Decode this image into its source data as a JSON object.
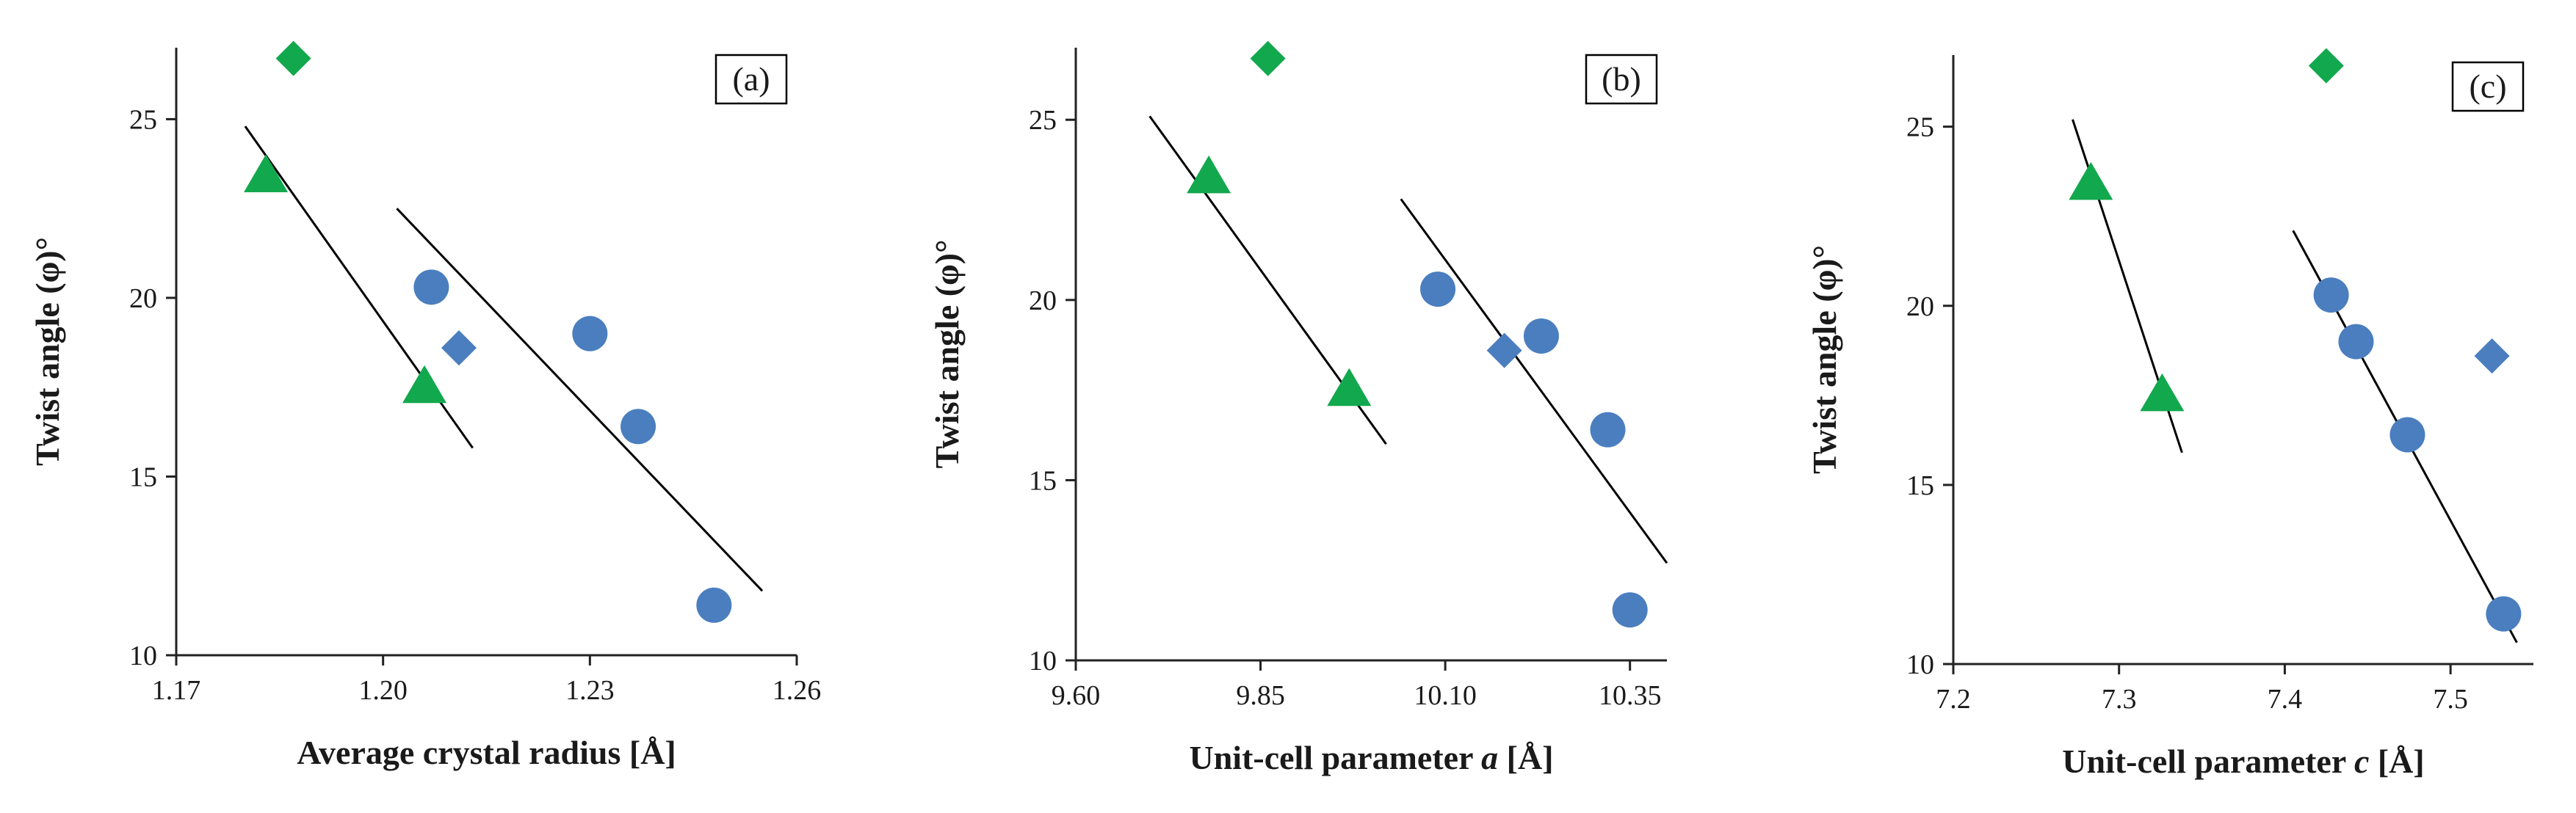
{
  "colors": {
    "blue": "#4a7ebf",
    "green": "#12a84e",
    "axis": "#222222",
    "fit": "#000000"
  },
  "chart_data": [
    {
      "type": "scatter",
      "panel_label": "(a)",
      "xlabel": "Average crystal radius [Å]",
      "xlabel_parts": [
        {
          "text": "Average crystal radius [Å]",
          "italic": false
        }
      ],
      "ylabel": "Twist angle (φ)°",
      "xlim": [
        1.17,
        1.26
      ],
      "ylim": [
        10,
        27
      ],
      "xticks": [
        1.17,
        1.2,
        1.23,
        1.26
      ],
      "xtick_labels": [
        "1.17",
        "1.20",
        "1.23",
        "1.26"
      ],
      "yticks": [
        10,
        15,
        20,
        25
      ],
      "ytick_labels": [
        "10",
        "15",
        "20",
        "25"
      ],
      "series": [
        {
          "marker": "triangle",
          "color": "green",
          "points": [
            [
              1.183,
              23.4
            ],
            [
              1.206,
              17.5
            ]
          ]
        },
        {
          "marker": "diamond",
          "color": "green",
          "points": [
            [
              1.187,
              26.7
            ]
          ]
        },
        {
          "marker": "circle",
          "color": "blue",
          "points": [
            [
              1.207,
              20.3
            ],
            [
              1.23,
              19.0
            ],
            [
              1.237,
              16.4
            ],
            [
              1.248,
              11.4
            ]
          ]
        },
        {
          "marker": "diamond",
          "color": "blue",
          "points": [
            [
              1.211,
              18.6
            ]
          ]
        }
      ],
      "fit_lines": [
        {
          "from": [
            1.18,
            24.8
          ],
          "to": [
            1.213,
            15.8
          ]
        },
        {
          "from": [
            1.202,
            22.5
          ],
          "to": [
            1.255,
            11.8
          ]
        }
      ]
    },
    {
      "type": "scatter",
      "panel_label": "(b)",
      "xlabel": "Unit-cell parameter a [Å]",
      "xlabel_parts": [
        {
          "text": "Unit-cell parameter ",
          "italic": false
        },
        {
          "text": "a",
          "italic": true
        },
        {
          "text": " [Å]",
          "italic": false
        }
      ],
      "ylabel": "Twist angle (φ)°",
      "xlim": [
        9.6,
        10.4
      ],
      "ylim": [
        10,
        27
      ],
      "xticks": [
        9.6,
        9.85,
        10.1,
        10.35
      ],
      "xtick_labels": [
        "9.60",
        "9.85",
        "10.10",
        "10.35"
      ],
      "yticks": [
        10,
        15,
        20,
        25
      ],
      "ytick_labels": [
        "10",
        "15",
        "20",
        "25"
      ],
      "series": [
        {
          "marker": "triangle",
          "color": "green",
          "points": [
            [
              9.78,
              23.4
            ],
            [
              9.97,
              17.5
            ]
          ]
        },
        {
          "marker": "diamond",
          "color": "green",
          "points": [
            [
              9.86,
              26.7
            ]
          ]
        },
        {
          "marker": "circle",
          "color": "blue",
          "points": [
            [
              10.09,
              20.3
            ],
            [
              10.23,
              19.0
            ],
            [
              10.32,
              16.4
            ],
            [
              10.35,
              11.4
            ]
          ]
        },
        {
          "marker": "diamond",
          "color": "blue",
          "points": [
            [
              10.18,
              18.6
            ]
          ]
        }
      ],
      "fit_lines": [
        {
          "from": [
            9.7,
            25.1
          ],
          "to": [
            10.02,
            16.0
          ]
        },
        {
          "from": [
            10.04,
            22.8
          ],
          "to": [
            10.4,
            12.7
          ]
        }
      ]
    },
    {
      "type": "scatter",
      "panel_label": "(c)",
      "xlabel": "Unit-cell parameter c [Å]",
      "xlabel_parts": [
        {
          "text": "Unit-cell parameter ",
          "italic": false
        },
        {
          "text": "c",
          "italic": true
        },
        {
          "text": " [Å]",
          "italic": false
        }
      ],
      "ylabel": "Twist angle (φ)°",
      "xlim": [
        7.2,
        7.55
      ],
      "ylim": [
        10,
        27
      ],
      "xticks": [
        7.2,
        7.3,
        7.4,
        7.5
      ],
      "xtick_labels": [
        "7.2",
        "7.3",
        "7.4",
        "7.5"
      ],
      "yticks": [
        10,
        15,
        20,
        25
      ],
      "ytick_labels": [
        "10",
        "15",
        "20",
        "25"
      ],
      "series": [
        {
          "marker": "triangle",
          "color": "green",
          "points": [
            [
              7.283,
              23.4
            ],
            [
              7.326,
              17.5
            ]
          ]
        },
        {
          "marker": "diamond",
          "color": "green",
          "points": [
            [
              7.425,
              26.7
            ]
          ]
        },
        {
          "marker": "circle",
          "color": "blue",
          "points": [
            [
              7.428,
              20.3
            ],
            [
              7.443,
              19.0
            ],
            [
              7.474,
              16.4
            ],
            [
              7.532,
              11.4
            ]
          ]
        },
        {
          "marker": "diamond",
          "color": "blue",
          "points": [
            [
              7.525,
              18.6
            ]
          ]
        }
      ],
      "fit_lines": [
        {
          "from": [
            7.272,
            25.2
          ],
          "to": [
            7.338,
            15.9
          ]
        },
        {
          "from": [
            7.405,
            22.1
          ],
          "to": [
            7.54,
            10.6
          ]
        }
      ]
    }
  ]
}
